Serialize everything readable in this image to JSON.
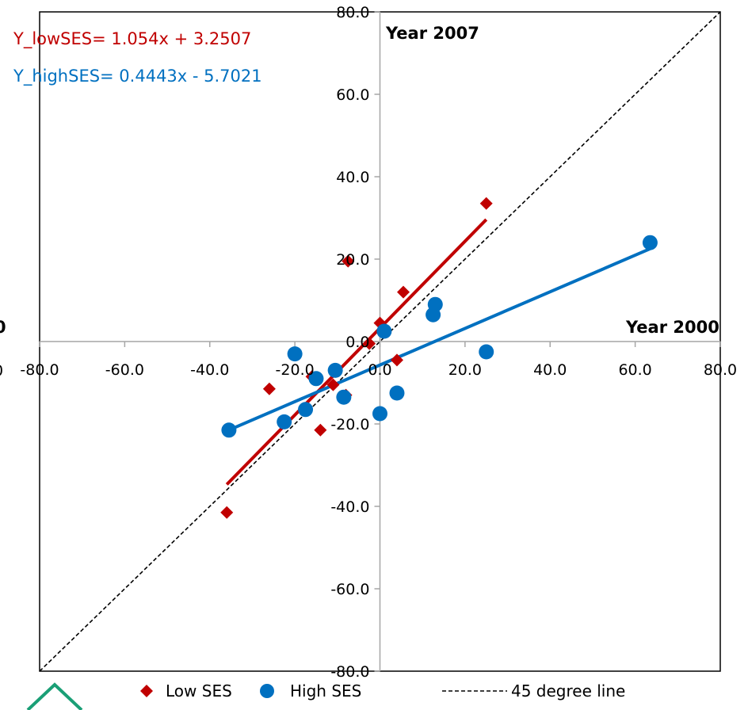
{
  "chart_data": {
    "type": "scatter",
    "xlabel": "Year 2000",
    "ylabel": "Year 2007",
    "xlim": [
      -80,
      80
    ],
    "ylim": [
      -80,
      80
    ],
    "x_ticks": [
      "-80.0",
      "-60.0",
      "-40.0",
      "-20.0",
      "0.0",
      "20.0",
      "40.0",
      "60.0",
      "80.0"
    ],
    "y_ticks": [
      "80.0",
      "60.0",
      "40.0",
      "20.0",
      "0.0",
      "-20.0",
      "-40.0",
      "-60.0",
      "-80.0"
    ],
    "x_tick_values": [
      -80,
      -60,
      -40,
      -20,
      0,
      20,
      40,
      60,
      80
    ],
    "y_tick_values": [
      80,
      60,
      40,
      20,
      0,
      -20,
      -40,
      -60,
      -80
    ],
    "grid": false,
    "legend_position": "bottom",
    "equations": {
      "low": "Y_lowSES= 1.054x + 3.2507",
      "high": "Y_highSES= 0.4443x - 5.7021"
    },
    "colors": {
      "low": "#c00000",
      "high": "#0070c0",
      "line45": "#000000",
      "axis": "#a6a6a6"
    },
    "series": [
      {
        "name": "Low SES",
        "marker": "diamond",
        "points": [
          [
            -36,
            -41.5
          ],
          [
            -26,
            -11.5
          ],
          [
            -16,
            -8.5
          ],
          [
            -14,
            -21.5
          ],
          [
            -11,
            -10.5
          ],
          [
            -8,
            -13
          ],
          [
            -7.5,
            19.5
          ],
          [
            -2.5,
            -0.5
          ],
          [
            0,
            4.5
          ],
          [
            5.5,
            12
          ],
          [
            4,
            -4.5
          ],
          [
            25,
            33.5
          ]
        ],
        "trendline": {
          "x": [
            -36,
            25
          ]
        }
      },
      {
        "name": "High SES",
        "marker": "circle",
        "points": [
          [
            -35.5,
            -21.5
          ],
          [
            -22.5,
            -19.5
          ],
          [
            -20,
            -3
          ],
          [
            -17.5,
            -16.5
          ],
          [
            -15,
            -9
          ],
          [
            -10.5,
            -7
          ],
          [
            -8.5,
            -13.5
          ],
          [
            0,
            -17.5
          ],
          [
            1,
            2.5
          ],
          [
            4,
            -12.5
          ],
          [
            12.5,
            6.5
          ],
          [
            13,
            9
          ],
          [
            25,
            -2.5
          ],
          [
            63.5,
            24
          ]
        ],
        "trendline": {
          "x": [
            -35.5,
            63.5
          ]
        }
      },
      {
        "name": "45 degree line",
        "style": "dashed"
      }
    ],
    "cut_labels": {
      "left_tick": "0",
      "left_title": "0"
    }
  }
}
